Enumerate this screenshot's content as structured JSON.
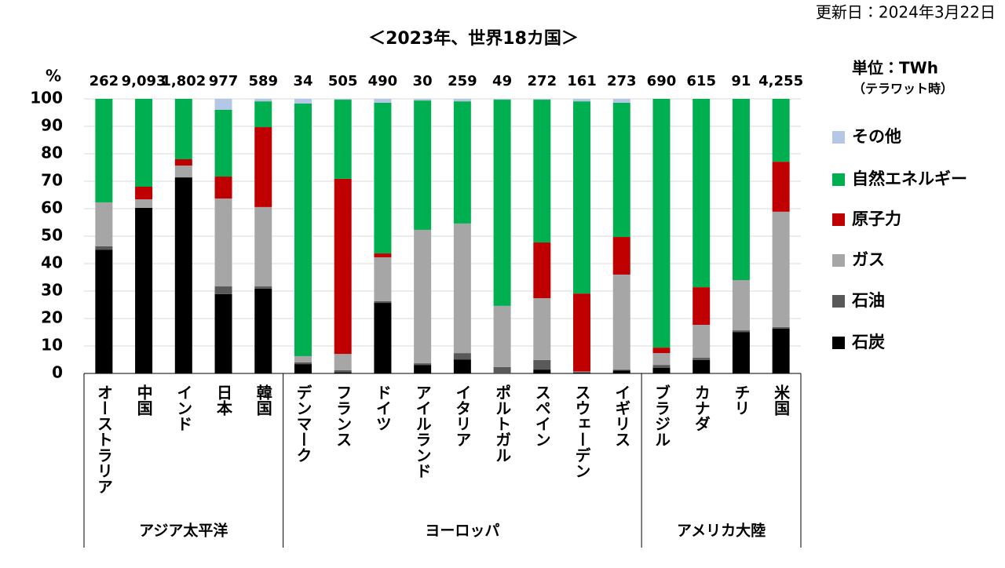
{
  "updated": "更新日：2024年3月22日",
  "chart_data": {
    "type": "stacked_bar",
    "title": "＜2023年、世界18カ国＞",
    "y_label": "%",
    "unit": "単位：TWh",
    "unit_note": "（テラワット時）",
    "groups": [
      {
        "name": "アジア太平洋",
        "categories": [
          "オーストラリア",
          "中国",
          "インド",
          "日本",
          "韓国"
        ]
      },
      {
        "name": "ヨーロッパ",
        "categories": [
          "デンマーク",
          "フランス",
          "ドイツ",
          "アイルランド",
          "イタリア",
          "ポルトガル",
          "スペイン",
          "スウェーデン",
          "イギリス"
        ]
      },
      {
        "name": "アメリカ大陸",
        "categories": [
          "ブラジル",
          "カナダ",
          "チリ",
          "米国"
        ]
      }
    ],
    "totals": {
      "values": [
        262,
        9093,
        1802,
        977,
        589,
        34,
        505,
        490,
        30,
        259,
        49,
        272,
        161,
        273,
        690,
        615,
        91,
        4255
      ],
      "value_labels": [
        "262",
        "9,093",
        "1,802",
        "977",
        "589",
        "34",
        "505",
        "490",
        "30",
        "259",
        "49",
        "272",
        "161",
        "273",
        "690",
        "615",
        "91",
        "4,255"
      ]
    },
    "series": [
      {
        "name": "石炭",
        "color": "#000000",
        "values": [
          45,
          60.3,
          71.4,
          28.9,
          30.9,
          3.4,
          0.4,
          25.7,
          3.1,
          5.1,
          0,
          1.4,
          0.3,
          1.1,
          2,
          4.9,
          15.1,
          16.3
        ]
      },
      {
        "name": "石油",
        "color": "#595959",
        "values": [
          1.3,
          0,
          0,
          2.8,
          0.8,
          0.6,
          0.8,
          0.6,
          0.6,
          2.3,
          2.3,
          3.5,
          0.2,
          0.3,
          1.1,
          0.8,
          0.6,
          0.6
        ]
      },
      {
        "name": "ガス",
        "color": "#a6a6a6",
        "values": [
          16,
          3.1,
          4.3,
          32,
          28.9,
          2.3,
          5.9,
          16,
          48.6,
          47.2,
          22.3,
          22.5,
          0.2,
          34.6,
          4.3,
          12,
          18.3,
          42
        ]
      },
      {
        "name": "原子力",
        "color": "#c00000",
        "values": [
          0,
          4.6,
          2.3,
          8,
          29.1,
          0,
          63.8,
          1.4,
          0,
          0,
          0,
          20.3,
          28.4,
          13.7,
          2,
          13.7,
          0,
          18.2
        ]
      },
      {
        "name": "自然エネルギー",
        "color": "#00b050",
        "values": [
          37.7,
          32,
          22,
          24.3,
          9.4,
          92,
          28.8,
          54.9,
          47.1,
          44.5,
          75.1,
          52,
          70,
          48.9,
          90.6,
          68.6,
          66,
          22.9
        ]
      },
      {
        "name": "その他",
        "color": "#b4c7e7",
        "values": [
          0,
          0,
          0,
          4,
          0.9,
          1.7,
          0.3,
          1.4,
          0.6,
          0.9,
          0.3,
          0.3,
          0.9,
          1.4,
          0,
          0,
          0,
          0
        ]
      }
    ],
    "ylim": [
      0,
      100
    ],
    "yticks": [
      0,
      10,
      20,
      30,
      40,
      50,
      60,
      70,
      80,
      90,
      100
    ],
    "grid": true
  }
}
